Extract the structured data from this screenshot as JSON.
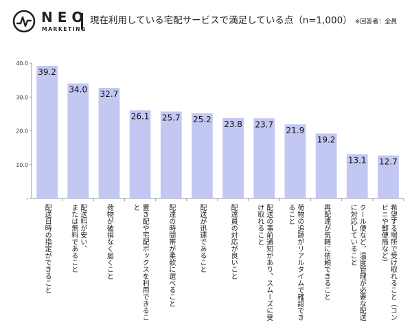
{
  "brand": {
    "name": "NEO",
    "sub": "MARKETING"
  },
  "header": {
    "title": "現在利用している宅配サービスで満足している点（n=1,000）",
    "note": "※回答者：全員"
  },
  "chart_data": {
    "type": "bar",
    "title": "現在利用している宅配サービスで満足している点（n=1,000）",
    "ylim": [
      0,
      40
    ],
    "yticks": [
      "-",
      "10.0",
      "20.0",
      "30.0",
      "40.0"
    ],
    "bar_color": "#c2c8f2",
    "grid": false,
    "categories": [
      [
        "配送日時の指定ができること"
      ],
      [
        "配送料が安い、",
        "または無料であること"
      ],
      [
        "荷物が破損なく届くこと"
      ],
      [
        "置き配や宅配ボックスを利用できるこ",
        "と"
      ],
      [
        "配達の時間帯が柔軟に選べること"
      ],
      [
        "配送が迅速であること"
      ],
      [
        "配達員の対応が良いこと"
      ],
      [
        "配送の事前通知があり、スムーズに受",
        "け取れること"
      ],
      [
        "荷物の追跡がリアルタイムで確認でき",
        "ること"
      ],
      [
        "再配達が気軽に依頼できること"
      ],
      [
        "クール便など、温度管理が必要な配送",
        "に対応していること"
      ],
      [
        "希望する場所で受け取れること（コン",
        "ビニや郵便局など）"
      ]
    ],
    "values": [
      39.2,
      34.0,
      32.7,
      26.1,
      25.7,
      25.2,
      23.8,
      23.7,
      21.9,
      19.2,
      13.1,
      12.7
    ],
    "value_labels": [
      "39.2",
      "34.0",
      "32.7",
      "26.1",
      "25.7",
      "25.2",
      "23.8",
      "23.7",
      "21.9",
      "19.2",
      "13.1",
      "12.7"
    ]
  }
}
